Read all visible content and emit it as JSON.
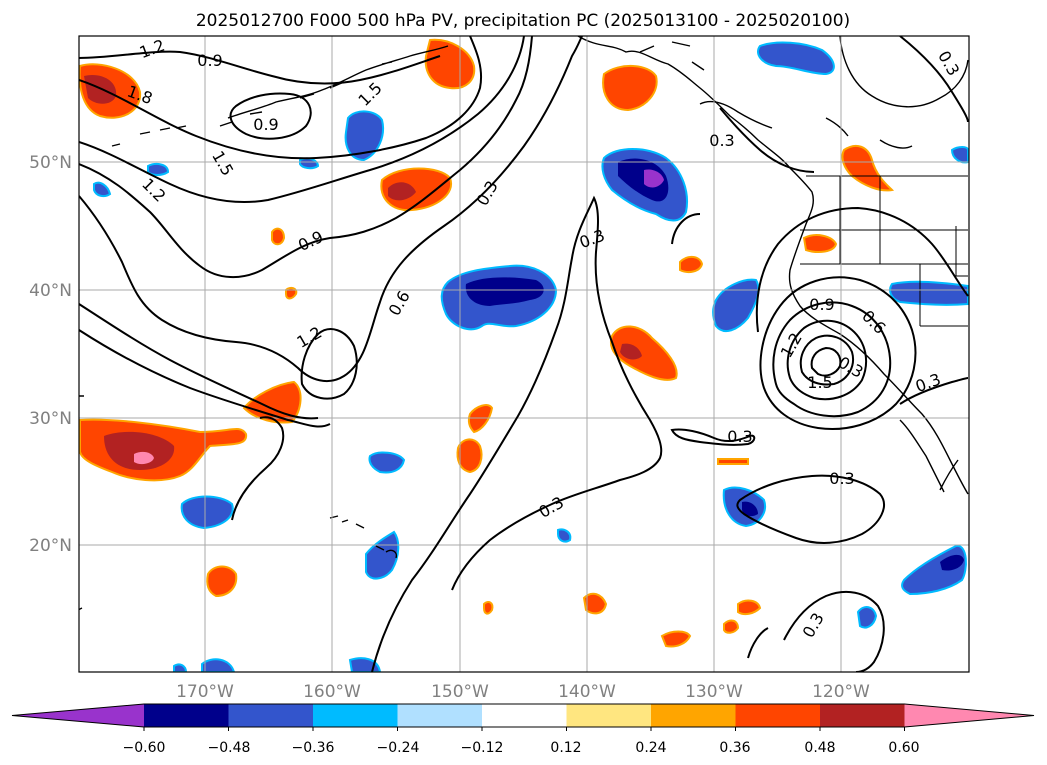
{
  "title": "2025012700 F000 500 hPa PV, precipitation PC (2025013100 - 2025020100)",
  "lat_labels": [
    "50°N",
    "40°N",
    "30°N",
    "20°N"
  ],
  "lon_labels": [
    "170°W",
    "160°W",
    "150°W",
    "140°W",
    "130°W",
    "120°W"
  ],
  "contour_labels": [
    "1.2",
    "0.9",
    "1.8",
    "0.9",
    "1.5",
    "1.5",
    "1.2",
    "0.9",
    "0.3",
    "0.3",
    "0.6",
    "1.2",
    "0.3",
    "0.3",
    "0.9",
    "0.6",
    "1.2",
    "1.5",
    "0.3",
    "0.3",
    "0.3",
    "0.3",
    "0.3",
    "0.3"
  ],
  "colorbar": {
    "tick_labels": [
      "−0.60",
      "−0.48",
      "−0.36",
      "−0.24",
      "−0.12",
      "0.12",
      "0.24",
      "0.36",
      "0.48",
      "0.60"
    ],
    "colors": [
      "#9933cc",
      "#00008b",
      "#3355cc",
      "#00bbff",
      "#b0e0ff",
      "#ffffff",
      "#ffe680",
      "#ffa500",
      "#ff4500",
      "#b22222",
      "#ff88b0"
    ]
  },
  "colors": {
    "land": "#000000",
    "grid": "#aaaaaa",
    "contour": "#000000"
  }
}
